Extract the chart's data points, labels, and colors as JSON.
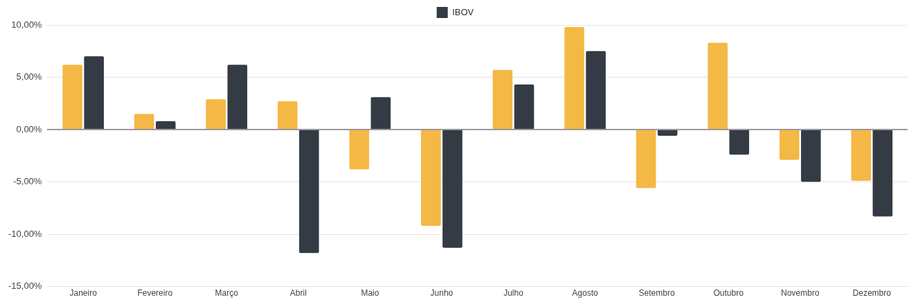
{
  "chart_data": {
    "type": "bar",
    "categories": [
      "Janeiro",
      "Fevereiro",
      "Março",
      "Abril",
      "Maio",
      "Junho",
      "Julho",
      "Agosto",
      "Setembro",
      "Outubro",
      "Novembro",
      "Dezembro"
    ],
    "series": [
      {
        "color": "#f4b844",
        "values": [
          6.2,
          1.5,
          2.9,
          2.7,
          -3.8,
          -9.2,
          5.7,
          9.8,
          -5.6,
          8.3,
          -2.9,
          -4.9
        ]
      },
      {
        "name": "IBOV",
        "color": "#343b45",
        "values": [
          7.0,
          0.8,
          6.2,
          -11.8,
          3.1,
          -11.3,
          4.3,
          7.5,
          -0.6,
          -2.4,
          -5.0,
          -8.3
        ]
      }
    ],
    "ylim": [
      -15,
      10
    ],
    "yticks": [
      {
        "value": -15,
        "label": "-15,00%"
      },
      {
        "value": -10,
        "label": "-10,00%"
      },
      {
        "value": -5,
        "label": "-5,00%"
      },
      {
        "value": 0,
        "label": "0,00%"
      },
      {
        "value": 5,
        "label": "5,00%"
      },
      {
        "value": 10,
        "label": "10,00%"
      }
    ],
    "grid": "y",
    "legend": "top"
  }
}
